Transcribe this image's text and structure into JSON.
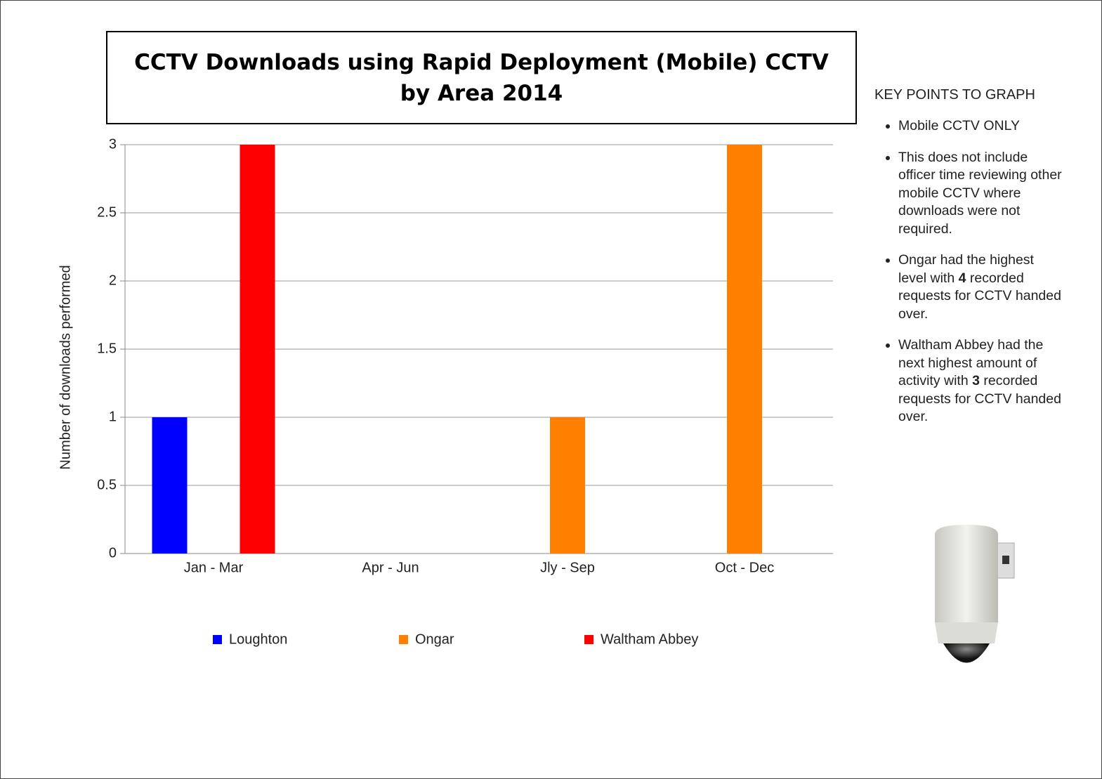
{
  "chart_data": {
    "type": "bar",
    "title": "CCTV Downloads using Rapid Deployment (Mobile) CCTV by Area 2014",
    "y_label": "Number of downloads performed",
    "categories": [
      "Jan - Mar",
      "Apr - Jun",
      "Jly - Sep",
      "Oct - Dec"
    ],
    "series": [
      {
        "name": "Loughton",
        "color": "#0000ff",
        "values": [
          1,
          0,
          0,
          0
        ]
      },
      {
        "name": "Ongar",
        "color": "#ff8000",
        "values": [
          0,
          0,
          1,
          3
        ]
      },
      {
        "name": "Waltham Abbey",
        "color": "#ff0000",
        "values": [
          3,
          0,
          0,
          0
        ]
      }
    ],
    "ylim": [
      0,
      3
    ],
    "yticks": [
      0,
      0.5,
      1,
      1.5,
      2,
      2.5,
      3
    ],
    "grid": true
  },
  "key_points": {
    "title": "KEY POINTS TO GRAPH",
    "items": [
      [
        "Mobile CCTV ONLY"
      ],
      [
        "This does not include officer time reviewing other mobile CCTV where downloads were not required."
      ],
      [
        "Ongar had the highest level with ",
        "4",
        " recorded requests for CCTV handed over."
      ],
      [
        "Waltham Abbey had the next highest amount of activity with ",
        "3",
        " recorded requests for CCTV handed over."
      ]
    ]
  }
}
